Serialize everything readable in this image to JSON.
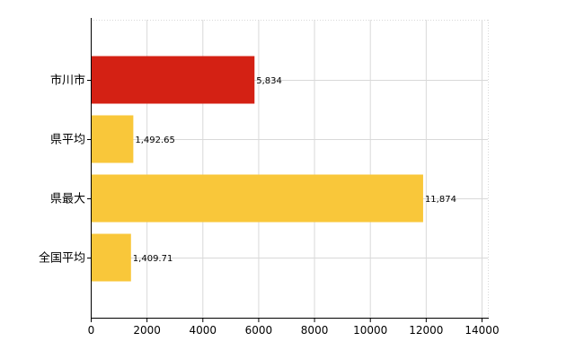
{
  "chart_data": {
    "type": "bar",
    "orientation": "horizontal",
    "categories": [
      "市川市",
      "県平均",
      "県最大",
      "全国平均"
    ],
    "values": [
      5834,
      1492.65,
      11874,
      1409.71
    ],
    "data_labels": [
      "5,834",
      "1,492.65",
      "11,874",
      "1,409.71"
    ],
    "bar_colors": [
      "#d42114",
      "#f9c73a",
      "#f9c73a",
      "#f9c73a"
    ],
    "x_ticks": [
      0,
      2000,
      4000,
      6000,
      8000,
      10000,
      12000,
      14000
    ],
    "xlim": [
      0,
      14000
    ],
    "grid": true,
    "legend": "none"
  }
}
